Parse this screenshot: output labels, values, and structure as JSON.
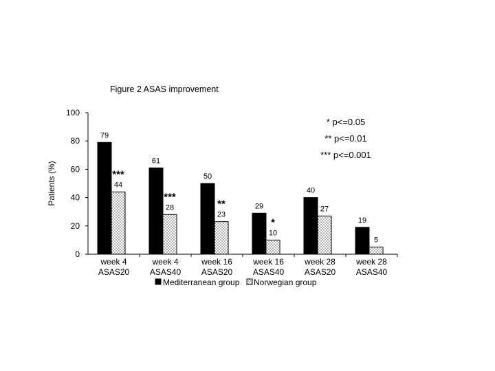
{
  "figure_title": "Figure 2   ASAS improvement",
  "chart_data": {
    "type": "bar",
    "title": "Figure 2   ASAS improvement",
    "xlabel": "",
    "ylabel": "Patients (%)",
    "ylim": [
      0,
      100
    ],
    "yticks": [
      0,
      20,
      40,
      60,
      80,
      100
    ],
    "categories": [
      [
        "week 4",
        "ASAS20"
      ],
      [
        "week 4",
        "ASAS40"
      ],
      [
        "week 16",
        "ASAS20"
      ],
      [
        "week 16",
        "ASAS40"
      ],
      [
        "week 28",
        "ASAS20"
      ],
      [
        "week 28",
        "ASAS40"
      ]
    ],
    "series": [
      {
        "name": "Mediterranean group",
        "values": [
          79,
          61,
          50,
          29,
          40,
          19
        ],
        "fill": "#000000"
      },
      {
        "name": "Norwegian group",
        "values": [
          44,
          28,
          23,
          10,
          27,
          5
        ],
        "fill": "dotted"
      }
    ],
    "significance": [
      "***",
      "***",
      "**",
      "*",
      "",
      ""
    ],
    "annotations": [
      "* p<=0.05",
      "** p<=0.01",
      "*** p<=0.001"
    ],
    "legend_position": "bottom",
    "grid": false
  }
}
